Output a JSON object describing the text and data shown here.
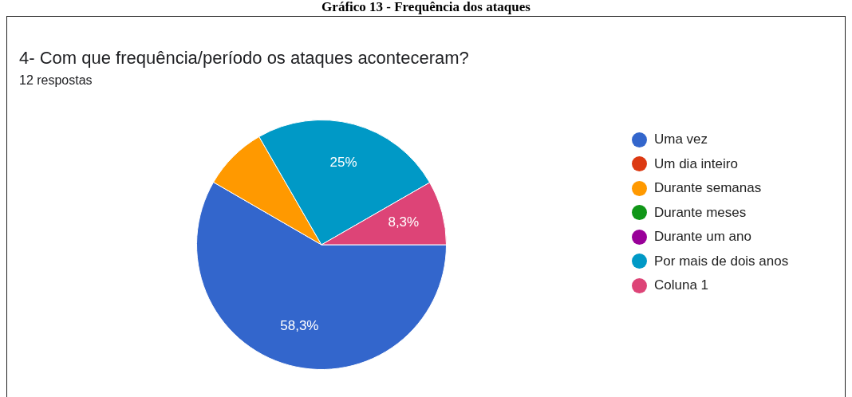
{
  "chart_data": {
    "type": "pie",
    "title": "4- Com que frequência/período os ataques aconteceram?",
    "subtitle": "12 respostas",
    "annotations": [
      "Gráfico 13 - Frequência dos ataques"
    ],
    "categories": [
      "Uma vez",
      "Um dia inteiro",
      "Durante semanas",
      "Durante meses",
      "Durante um ano",
      "Por mais de dois anos",
      "Coluna 1"
    ],
    "values": [
      58.3,
      0,
      8.3,
      0,
      0,
      25,
      8.3
    ],
    "value_labels": [
      "58,3%",
      null,
      null,
      null,
      null,
      "25%",
      "8,3%"
    ],
    "colors": [
      "#3366cc",
      "#dc3912",
      "#ff9900",
      "#109618",
      "#990099",
      "#0099c6",
      "#dd4477"
    ],
    "legend": "right"
  }
}
